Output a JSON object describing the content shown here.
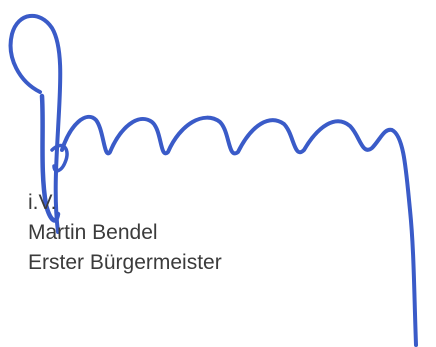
{
  "signature_block": {
    "proxy_note": "i.V.",
    "name": "Martin Bendel",
    "title": "Erster Bürgermeister"
  },
  "colors": {
    "ink": "#3a5bc8",
    "text": "#3b3b3b",
    "background": "#ffffff"
  }
}
